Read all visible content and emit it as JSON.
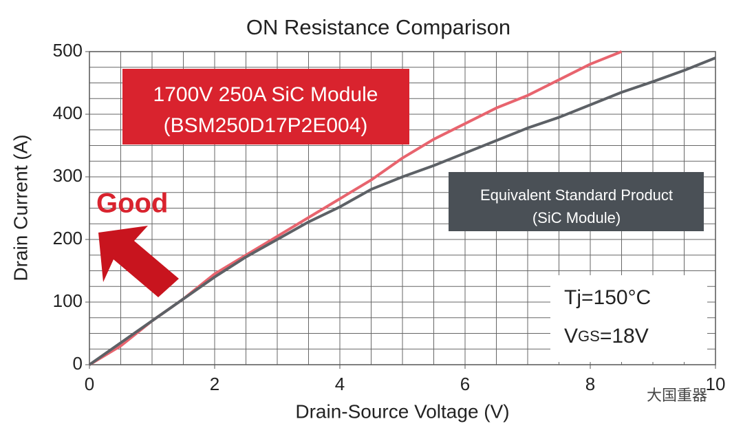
{
  "chart_data": {
    "type": "line",
    "title": "ON Resistance Comparison",
    "x_label": "Drain-Source Voltage (V)",
    "y_label": "Drain Current (A)",
    "series": [
      {
        "name": "1700V 250A SiC Module (BSM250D17P2E004)",
        "color": "#e8646e",
        "x": [
          0,
          0.5,
          1,
          1.5,
          2,
          2.5,
          3,
          3.5,
          4,
          4.5,
          5,
          5.5,
          6,
          6.5,
          7,
          7.5,
          8,
          8.5
        ],
        "values": [
          0,
          30,
          70,
          105,
          145,
          175,
          205,
          235,
          265,
          295,
          330,
          360,
          385,
          410,
          430,
          455,
          480,
          500
        ]
      },
      {
        "name": "Equivalent Standard Product (SiC Module)",
        "color": "#5d6166",
        "x": [
          0,
          0.5,
          1,
          1.5,
          2,
          2.5,
          3,
          3.5,
          4,
          4.5,
          5,
          5.5,
          6,
          6.5,
          7,
          7.5,
          8,
          8.5,
          9,
          9.5,
          10
        ],
        "values": [
          0,
          35,
          70,
          105,
          140,
          172,
          200,
          228,
          252,
          280,
          300,
          318,
          338,
          358,
          378,
          395,
          415,
          435,
          452,
          470,
          490
        ]
      }
    ],
    "xlim": [
      0,
      10
    ],
    "ylim": [
      0,
      500
    ],
    "xticks": [
      0,
      2,
      4,
      6,
      8,
      10
    ],
    "yticks": [
      0,
      100,
      200,
      300,
      400,
      500
    ],
    "grid": true,
    "minor_grid_step": [
      0.5,
      25
    ],
    "annotations": {
      "box1_line1": "1700V 250A SiC Module",
      "box1_line2": "(BSM250D17P2E004)",
      "box2_line1": "Equivalent Standard Product",
      "box2_line2": "(SiC Module)",
      "good": "Good",
      "tj": "Tj=150°C",
      "vgs_v": "V",
      "vgs_sub": "GS",
      "vgs_rest": "=18V",
      "watermark": "大国重器"
    }
  }
}
